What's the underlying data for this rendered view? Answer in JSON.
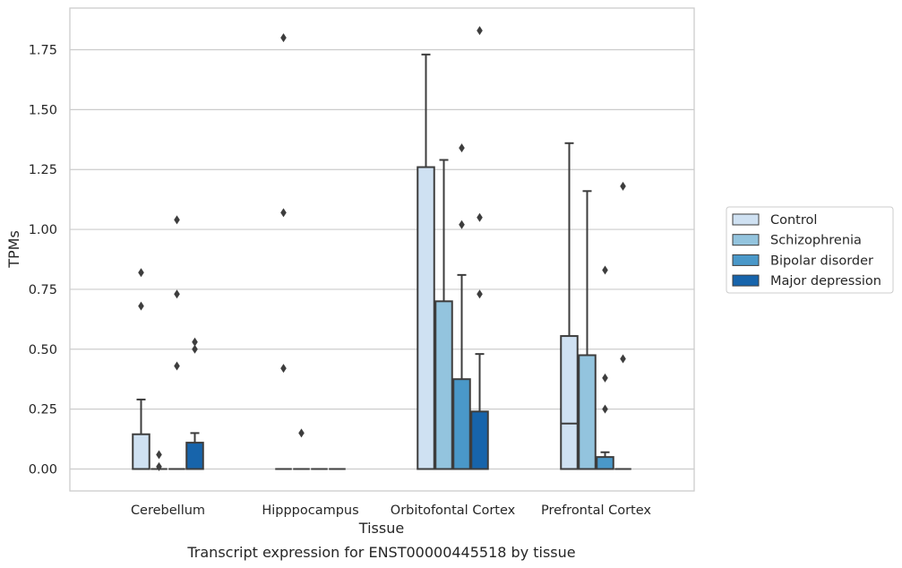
{
  "chart_data": {
    "type": "boxplot",
    "title": "Transcript expression for ENST00000445518 by tissue",
    "xlabel": "Tissue",
    "ylabel": "TPMs",
    "ylim": [
      -0.09,
      1.93
    ],
    "yticks": [
      "0.00",
      "0.25",
      "0.50",
      "0.75",
      "1.00",
      "1.25",
      "1.50",
      "1.75"
    ],
    "ytick_values": [
      0,
      0.25,
      0.5,
      0.75,
      1.0,
      1.25,
      1.5,
      1.75
    ],
    "grid": true,
    "legend_position": "right",
    "categories": [
      "Cerebellum",
      "Hipppocampus",
      "Orbitofontal Cortex",
      "Prefrontal Cortex"
    ],
    "series": [
      {
        "name": "Control",
        "color": "#cfe1f2",
        "boxes": [
          {
            "q1": 0,
            "median": 0,
            "q3": 0.145,
            "whislo": 0,
            "whishi": 0.29,
            "fliers": [
              0.82,
              0.68
            ]
          },
          {
            "q1": 0,
            "median": 0,
            "q3": 0,
            "whislo": 0,
            "whishi": 0,
            "fliers": [
              1.8,
              1.07,
              0.42
            ]
          },
          {
            "q1": 0,
            "median": 0,
            "q3": 1.26,
            "whislo": 0,
            "whishi": 1.73,
            "fliers": []
          },
          {
            "q1": 0,
            "median": 0.19,
            "q3": 0.555,
            "whislo": 0,
            "whishi": 1.36,
            "fliers": []
          }
        ]
      },
      {
        "name": "Schizophrenia",
        "color": "#93c4de",
        "boxes": [
          {
            "q1": 0,
            "median": 0,
            "q3": 0,
            "whislo": 0,
            "whishi": 0,
            "fliers": [
              0.06,
              0.01
            ]
          },
          {
            "q1": 0,
            "median": 0,
            "q3": 0,
            "whislo": 0,
            "whishi": 0,
            "fliers": [
              0.15
            ]
          },
          {
            "q1": 0,
            "median": 0,
            "q3": 0.7,
            "whislo": 0,
            "whishi": 1.29,
            "fliers": []
          },
          {
            "q1": 0,
            "median": 0,
            "q3": 0.475,
            "whislo": 0,
            "whishi": 1.16,
            "fliers": []
          }
        ]
      },
      {
        "name": "Bipolar disorder",
        "color": "#4a98c9",
        "boxes": [
          {
            "q1": 0,
            "median": 0,
            "q3": 0,
            "whislo": 0,
            "whishi": 0,
            "fliers": [
              1.04,
              0.73,
              0.43
            ]
          },
          {
            "q1": 0,
            "median": 0,
            "q3": 0,
            "whislo": 0,
            "whishi": 0,
            "fliers": []
          },
          {
            "q1": 0,
            "median": 0,
            "q3": 0.375,
            "whislo": 0,
            "whishi": 0.81,
            "fliers": [
              1.34,
              1.02
            ]
          },
          {
            "q1": 0,
            "median": 0,
            "q3": 0.05,
            "whislo": 0,
            "whishi": 0.07,
            "fliers": [
              0.83,
              0.38,
              0.25
            ]
          }
        ]
      },
      {
        "name": "Major depression",
        "color": "#1764ab",
        "boxes": [
          {
            "q1": 0,
            "median": 0,
            "q3": 0.11,
            "whislo": 0,
            "whishi": 0.15,
            "fliers": [
              0.53,
              0.5
            ]
          },
          {
            "q1": 0,
            "median": 0,
            "q3": 0,
            "whislo": 0,
            "whishi": 0,
            "fliers": []
          },
          {
            "q1": 0,
            "median": 0,
            "q3": 0.24,
            "whislo": 0,
            "whishi": 0.48,
            "fliers": [
              1.83,
              1.05,
              0.73
            ]
          },
          {
            "q1": 0,
            "median": 0,
            "q3": 0,
            "whislo": 0,
            "whishi": 0,
            "fliers": [
              1.18,
              0.46
            ]
          }
        ]
      }
    ]
  }
}
